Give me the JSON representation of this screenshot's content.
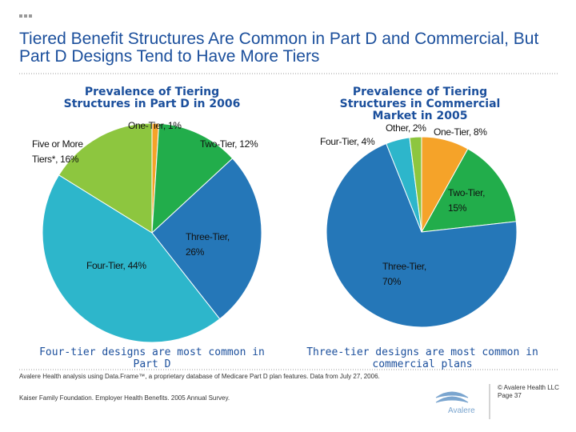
{
  "header": {
    "title": "Tiered Benefit Structures Are Common in Part D and Commercial, But Part D Designs Tend to Have More Tiers"
  },
  "chart_data": [
    {
      "type": "pie",
      "title": "Prevalence of Tiering Structures in Part D in 2006",
      "categories": [
        "One-Tier, 1%",
        "Two-Tier, 12%",
        "Three-Tier, 26%",
        "Four-Tier, 44%",
        "Five or More Tiers*, 16%"
      ],
      "values": [
        1,
        12,
        26,
        44,
        16
      ],
      "colors": [
        "#f5a329",
        "#22ad4b",
        "#2577b8",
        "#2db6cb",
        "#8dc63f"
      ],
      "caption": "Four-tier designs are most common in Part D"
    },
    {
      "type": "pie",
      "title": "Prevalence of Tiering Structures in Commercial Market in 2005",
      "categories": [
        "One-Tier, 8%",
        "Two-Tier, 15%",
        "Three-Tier, 70%",
        "Four-Tier, 4%",
        "Other, 2%"
      ],
      "values": [
        8,
        15,
        70,
        4,
        2
      ],
      "colors": [
        "#f5a329",
        "#22ad4b",
        "#2577b8",
        "#2db6cb",
        "#8dc63f"
      ],
      "caption": "Three-tier designs are most common in commercial plans"
    }
  ],
  "footer": {
    "source1": "Avalere Health analysis using Data.Frame™, a proprietary database of Medicare Part D plan features. Data from July 27, 2006.",
    "source2": "Kaiser Family Foundation. Employer Health Benefits. 2005 Annual Survey.",
    "logo": "Avalere",
    "copyright": "© Avalere Health LLC",
    "page": "Page 37"
  }
}
